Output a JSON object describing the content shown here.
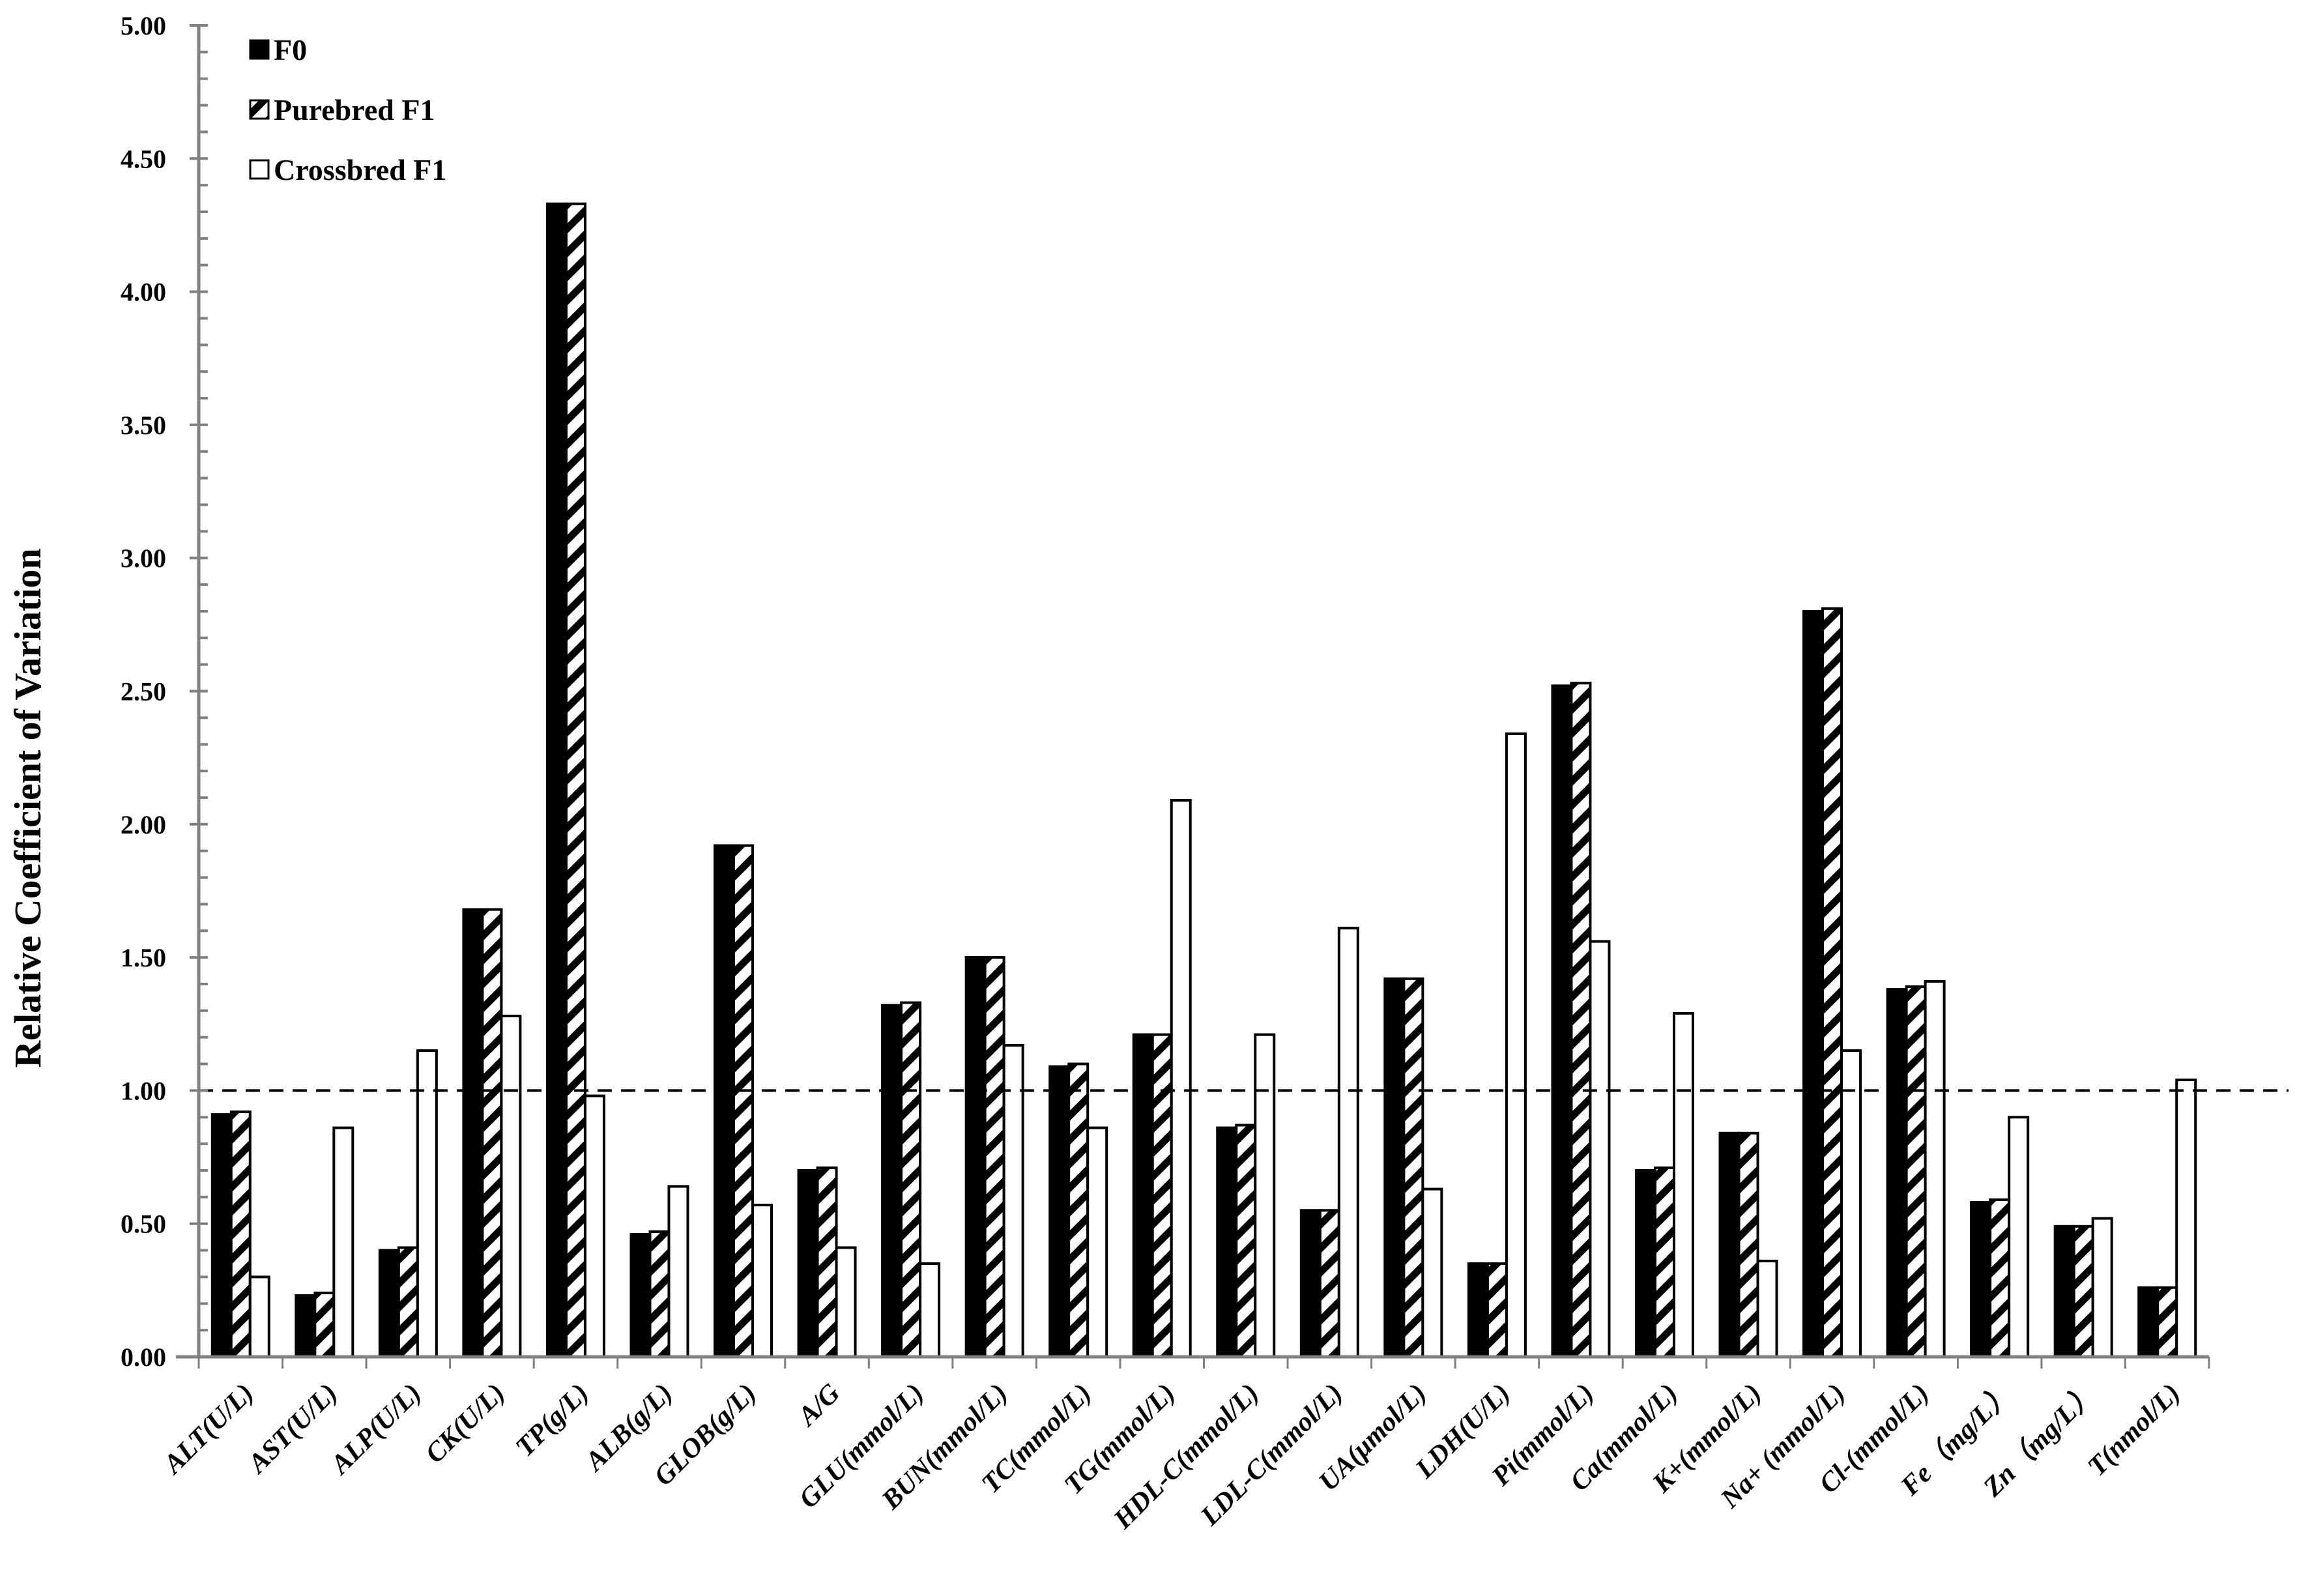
{
  "chart_data": {
    "type": "bar",
    "title": "",
    "xlabel": "",
    "ylabel": "Relative Coefficient of Variation",
    "ylim": [
      0,
      5
    ],
    "ytick_step": 0.5,
    "ytick_format_decimals": 2,
    "grid": false,
    "legend_position": "top-left",
    "reference_line": {
      "value": 1.0,
      "style": "dashed"
    },
    "categories": [
      "ALT(U/L)",
      "AST(U/L)",
      "ALP(U/L)",
      "CK(U/L)",
      "TP(g/L)",
      "ALB(g/L)",
      "GLOB(g/L)",
      "A/G",
      "GLU(mmol/L)",
      "BUN(mmol/L)",
      "TC(mmol/L)",
      "TG(mmol/L)",
      "HDL-C(mmol/L)",
      "LDL-C(mmol/L)",
      "UA(μmol/L)",
      "LDH(U/L)",
      "Pi(mmol/L)",
      "Ca(mmol/L)",
      "K+(mmol/L)",
      "Na+ (mmol/L)",
      "Cl-(mmol/L)",
      "Fe（mg/L）",
      "Zn（mg/L）",
      "T(nmol/L)"
    ],
    "series": [
      {
        "name": "F0",
        "fill": "solid",
        "color": "#000000",
        "values": [
          0.91,
          0.23,
          0.4,
          1.68,
          4.33,
          0.46,
          1.92,
          0.7,
          1.32,
          1.5,
          1.09,
          1.21,
          0.86,
          0.55,
          1.42,
          0.35,
          2.52,
          0.7,
          0.84,
          2.8,
          1.38,
          0.58,
          0.49,
          0.26
        ]
      },
      {
        "name": "Purebred F1",
        "fill": "hatched",
        "color": "#000000",
        "values": [
          0.92,
          0.24,
          0.41,
          1.68,
          4.33,
          0.47,
          1.92,
          0.71,
          1.33,
          1.5,
          1.1,
          1.21,
          0.87,
          0.55,
          1.42,
          0.35,
          2.53,
          0.71,
          0.84,
          2.81,
          1.39,
          0.59,
          0.49,
          0.26
        ]
      },
      {
        "name": "Crossbred F1",
        "fill": "hollow",
        "color": "#ffffff",
        "values": [
          0.3,
          0.86,
          1.15,
          1.28,
          0.98,
          0.64,
          0.57,
          0.41,
          0.35,
          1.17,
          0.86,
          2.09,
          1.21,
          1.61,
          0.63,
          2.34,
          1.56,
          1.29,
          0.36,
          1.15,
          1.41,
          0.9,
          0.52,
          1.04
        ]
      }
    ]
  }
}
